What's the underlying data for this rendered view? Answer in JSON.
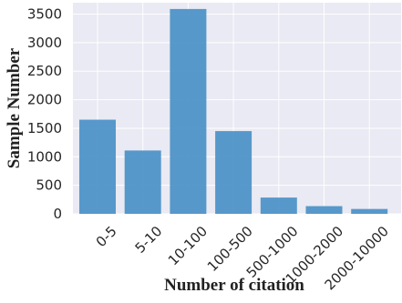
{
  "chart_data": {
    "type": "bar",
    "title": "",
    "xlabel": "Number of citation",
    "ylabel": "Sample Number",
    "categories": [
      "0-5",
      "5-10",
      "10-100",
      "100-500",
      "500-1000",
      "1000-2000",
      "2000-10000"
    ],
    "values": [
      1650,
      1110,
      3590,
      1450,
      285,
      135,
      85
    ],
    "ylim": [
      0,
      3700
    ],
    "yticks": [
      0,
      500,
      1000,
      1500,
      2000,
      2500,
      3000,
      3500
    ],
    "grid": true,
    "colors": {
      "bar": "#4a90c8",
      "plot_background": "#e9eaf3",
      "grid": "#ffffff"
    }
  }
}
